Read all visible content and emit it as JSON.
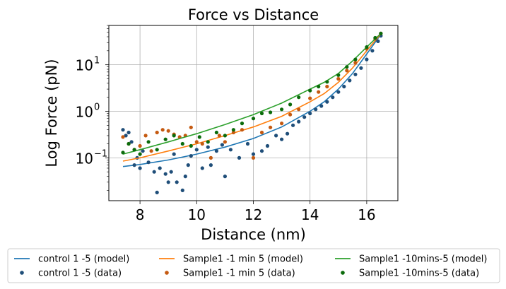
{
  "chart_data": {
    "type": "scatter",
    "title": "Force vs Distance",
    "xlabel": "Distance (nm)",
    "ylabel": "Log Force (pN)",
    "xlim": [
      6.9,
      17.1
    ],
    "ylim": [
      0.012,
      70
    ],
    "yscale": "log",
    "xticks": [
      8,
      10,
      12,
      14,
      16
    ],
    "xtick_labels": [
      "8",
      "10",
      "12",
      "14",
      "16"
    ],
    "yticks": [
      0.1,
      1,
      10
    ],
    "ytick_labels": [
      "10",
      "10",
      "10"
    ],
    "ytick_exponents": [
      "−1",
      "0",
      "1"
    ],
    "grid": true,
    "legend": "bottom, outside, 3 columns",
    "legend_columns": [
      [
        "control 1 -5 (model)",
        "control 1 -5 (data)"
      ],
      [
        "Sample1 -1 min 5 (model)",
        "Sample1 -1 min 5 (data)"
      ],
      [
        "Sample1 -10mins-5 (model)",
        "Sample1 -10mins-5 (data)"
      ]
    ],
    "series": [
      {
        "name": "control 1 -5 (model)",
        "kind": "line",
        "color": "#1f77b4",
        "x": [
          7.4,
          8,
          9,
          10,
          11,
          12,
          13,
          14,
          14.5,
          15,
          15.5,
          16,
          16.5
        ],
        "y": [
          0.065,
          0.072,
          0.09,
          0.12,
          0.17,
          0.26,
          0.46,
          1.0,
          1.6,
          3.0,
          6.5,
          17,
          45
        ]
      },
      {
        "name": "control 1 -5 (data)",
        "kind": "scatter",
        "color": "#1f4e79",
        "x": [
          7.4,
          7.5,
          7.6,
          7.7,
          7.8,
          7.9,
          8.0,
          8.1,
          8.3,
          8.5,
          8.6,
          8.7,
          8.9,
          9.0,
          9.1,
          9.2,
          9.3,
          9.5,
          9.6,
          9.7,
          9.8,
          10.0,
          10.2,
          10.4,
          10.5,
          10.7,
          10.9,
          11.0,
          11.2,
          11.5,
          11.8,
          12.0,
          12.3,
          12.5,
          12.8,
          13.0,
          13.2,
          13.4,
          13.6,
          13.8,
          14.0,
          14.2,
          14.4,
          14.6,
          14.8,
          15.0,
          15.2,
          15.4,
          15.6,
          15.8,
          16.0,
          16.2,
          16.4,
          16.5
        ],
        "y": [
          0.4,
          0.3,
          0.35,
          0.22,
          0.07,
          0.1,
          0.06,
          0.14,
          0.08,
          0.05,
          0.018,
          0.06,
          0.045,
          0.03,
          0.05,
          0.12,
          0.03,
          0.02,
          0.04,
          0.07,
          0.11,
          0.15,
          0.06,
          0.17,
          0.07,
          0.14,
          0.19,
          0.04,
          0.15,
          0.1,
          0.2,
          0.12,
          0.14,
          0.18,
          0.3,
          0.25,
          0.33,
          0.5,
          0.6,
          0.75,
          0.9,
          1.1,
          1.3,
          1.6,
          2.0,
          2.6,
          3.4,
          4.6,
          6.2,
          8.5,
          13,
          20,
          32,
          42
        ]
      },
      {
        "name": "Sample1 -1 min 5 (model)",
        "kind": "line",
        "color": "#ff7f0e",
        "x": [
          7.4,
          8,
          9,
          10,
          11,
          12,
          13,
          14,
          14.5,
          15,
          15.5,
          16,
          16.5
        ],
        "y": [
          0.085,
          0.1,
          0.14,
          0.2,
          0.3,
          0.46,
          0.78,
          1.6,
          2.4,
          4.2,
          8.5,
          20,
          46
        ]
      },
      {
        "name": "Sample1 -1 min 5 (data)",
        "kind": "scatter",
        "color": "#c55a11",
        "x": [
          7.4,
          7.6,
          7.8,
          8.0,
          8.2,
          8.4,
          8.6,
          8.8,
          9.0,
          9.2,
          9.4,
          9.6,
          9.8,
          10.0,
          10.2,
          10.5,
          10.8,
          11.0,
          11.3,
          11.6,
          12.0,
          12.3,
          12.6,
          13.0,
          13.3,
          13.6,
          14.0,
          14.3,
          14.6,
          15.0,
          15.3,
          15.6,
          16.0,
          16.3,
          16.5
        ],
        "y": [
          0.28,
          0.2,
          0.15,
          0.18,
          0.3,
          0.14,
          0.35,
          0.4,
          0.38,
          0.32,
          0.28,
          0.3,
          0.45,
          0.22,
          0.2,
          0.1,
          0.3,
          0.22,
          0.35,
          0.4,
          0.1,
          0.35,
          0.45,
          0.55,
          0.85,
          1.1,
          1.9,
          2.6,
          3.4,
          5.0,
          7.5,
          11,
          22,
          36,
          47
        ]
      },
      {
        "name": "Sample1 -10mins-5 (model)",
        "kind": "line",
        "color": "#2ca02c",
        "x": [
          7.4,
          8,
          9,
          10,
          11,
          12,
          13,
          14,
          14.5,
          15,
          15.5,
          16,
          16.5
        ],
        "y": [
          0.12,
          0.15,
          0.22,
          0.33,
          0.52,
          0.85,
          1.5,
          3.0,
          4.2,
          6.5,
          12,
          24,
          47
        ]
      },
      {
        "name": "Sample1 -10mins-5 (data)",
        "kind": "scatter",
        "color": "#0b6b0b",
        "x": [
          7.4,
          7.6,
          7.8,
          8.0,
          8.3,
          8.6,
          8.9,
          9.2,
          9.5,
          9.8,
          10.1,
          10.4,
          10.7,
          11.0,
          11.3,
          11.6,
          12.0,
          12.3,
          12.6,
          13.0,
          13.3,
          13.6,
          14.0,
          14.3,
          14.6,
          15.0,
          15.3,
          15.6,
          16.0,
          16.3,
          16.5
        ],
        "y": [
          0.13,
          0.2,
          0.15,
          0.12,
          0.22,
          0.15,
          0.25,
          0.3,
          0.2,
          0.18,
          0.28,
          0.22,
          0.35,
          0.3,
          0.4,
          0.55,
          0.7,
          0.9,
          0.95,
          1.1,
          1.4,
          2.0,
          2.8,
          3.4,
          4.3,
          6.0,
          9.0,
          13,
          24,
          38,
          47
        ]
      }
    ]
  }
}
